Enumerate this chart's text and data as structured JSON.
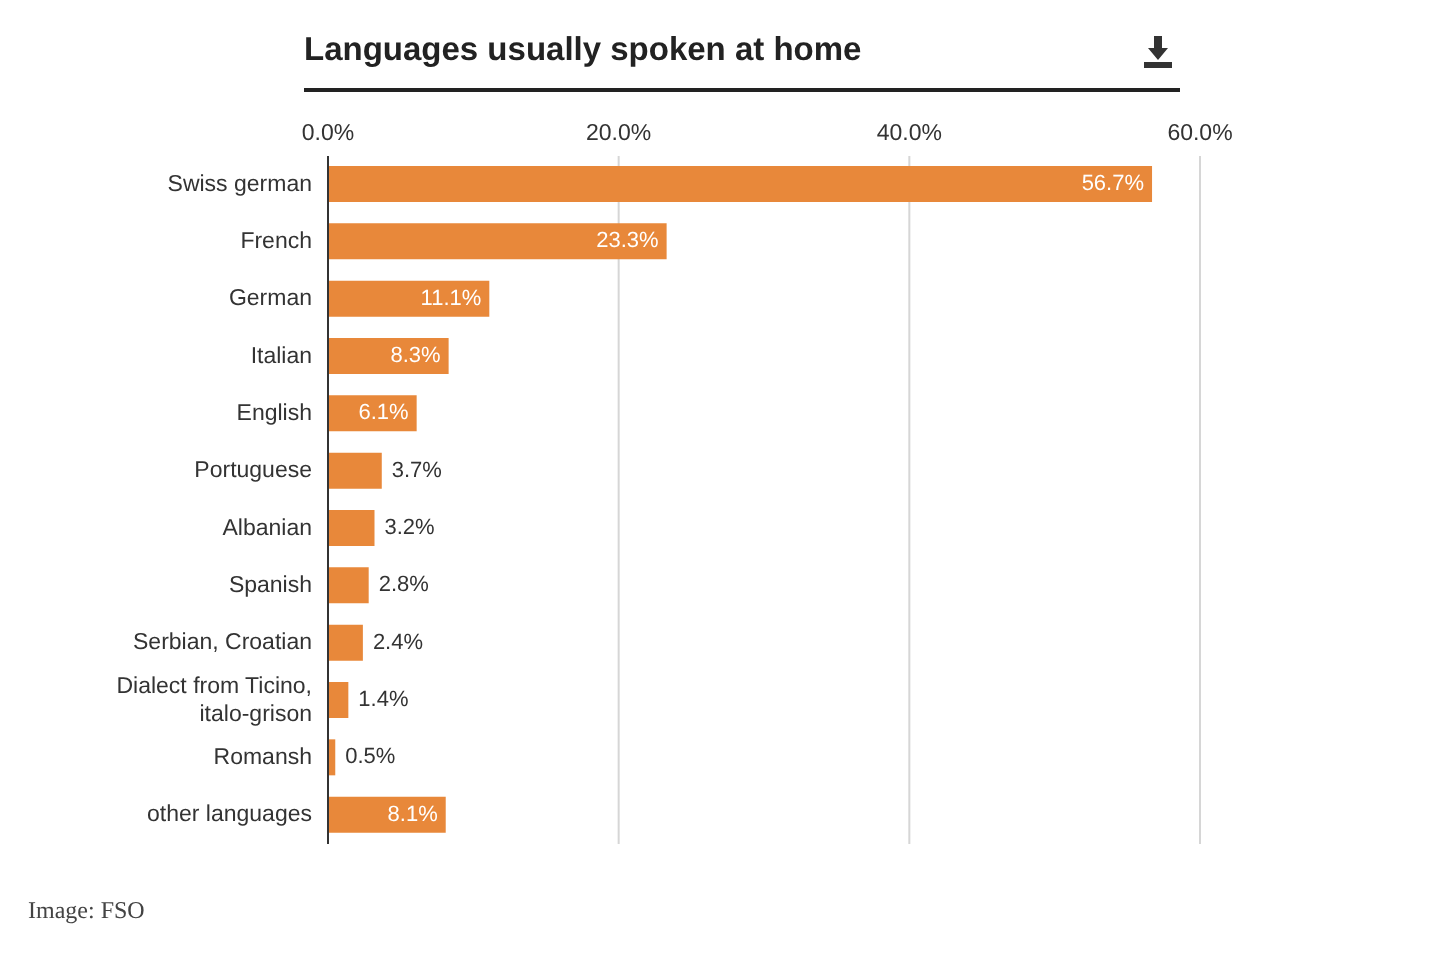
{
  "chart_data": {
    "type": "bar",
    "orientation": "horizontal",
    "title": "Languages usually spoken at home",
    "categories": [
      "Swiss german",
      "French",
      "German",
      "Italian",
      "English",
      "Portuguese",
      "Albanian",
      "Spanish",
      "Serbian, Croatian",
      "Dialect from Ticino, italo-grison",
      "Romansh",
      "other languages"
    ],
    "values": [
      56.7,
      23.3,
      11.1,
      8.3,
      6.1,
      3.7,
      3.2,
      2.8,
      2.4,
      1.4,
      0.5,
      8.1
    ],
    "value_labels": [
      "56.7%",
      "23.3%",
      "11.1%",
      "8.3%",
      "6.1%",
      "3.7%",
      "3.2%",
      "2.8%",
      "2.4%",
      "1.4%",
      "0.5%",
      "8.1%"
    ],
    "color": "#e8883a",
    "xlim": [
      0,
      60
    ],
    "xticks": [
      {
        "value": 0,
        "label": "0.0%"
      },
      {
        "value": 20,
        "label": "20.0%"
      },
      {
        "value": 40,
        "label": "40.0%"
      },
      {
        "value": 60,
        "label": "60.0%"
      }
    ],
    "grid": "x",
    "annotations": [
      "Image: FSO"
    ]
  }
}
